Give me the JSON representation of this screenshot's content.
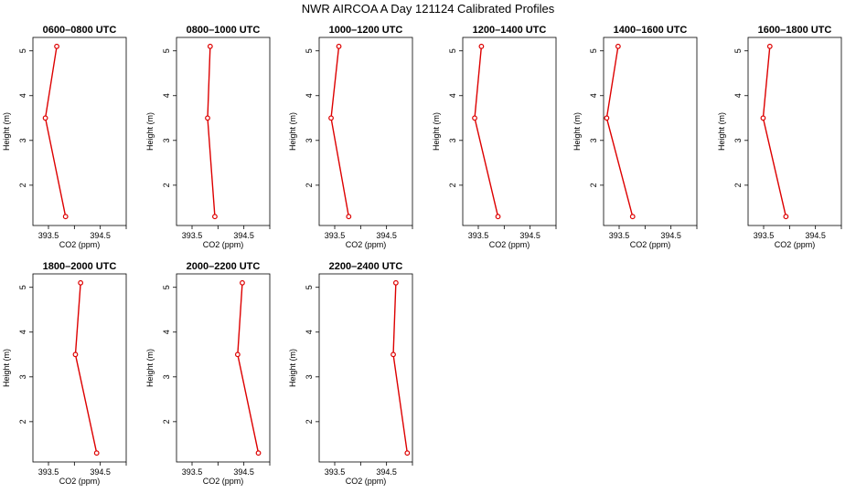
{
  "title": "NWR AIRCOA A  Day 121124  Calibrated Profiles",
  "colors": {
    "series": "#dd0000",
    "axis": "#000000"
  },
  "chart_data": {
    "type": "line",
    "xlabel": "CO2 (ppm)",
    "ylabel": "Height (m)",
    "xlim": [
      393.2,
      395.0
    ],
    "ylim": [
      1.1,
      5.3
    ],
    "xticks": [
      393.5,
      394.0,
      394.5,
      395.0
    ],
    "xtick_labels": [
      "393.5",
      "",
      "394.5",
      ""
    ],
    "yticks": [
      2,
      3,
      4,
      5
    ],
    "ytick_labels": [
      "2",
      "3",
      "4",
      "5"
    ],
    "panels": [
      {
        "title": "0600–0800 UTC",
        "co2": [
          393.83,
          393.44,
          393.66
        ],
        "height": [
          1.3,
          3.5,
          5.1
        ]
      },
      {
        "title": "0800–1000 UTC",
        "co2": [
          393.94,
          393.8,
          393.85
        ],
        "height": [
          1.3,
          3.5,
          5.1
        ]
      },
      {
        "title": "1000–1200 UTC",
        "co2": [
          393.77,
          393.43,
          393.58
        ],
        "height": [
          1.3,
          3.5,
          5.1
        ]
      },
      {
        "title": "1200–1400 UTC",
        "co2": [
          393.88,
          393.43,
          393.56
        ],
        "height": [
          1.3,
          3.5,
          5.1
        ]
      },
      {
        "title": "1400–1600 UTC",
        "co2": [
          393.76,
          393.26,
          393.48
        ],
        "height": [
          1.3,
          3.5,
          5.1
        ]
      },
      {
        "title": "1600–1800 UTC",
        "co2": [
          393.93,
          393.49,
          393.62
        ],
        "height": [
          1.3,
          3.5,
          5.1
        ]
      },
      {
        "title": "1800–2000 UTC",
        "co2": [
          394.43,
          394.02,
          394.12
        ],
        "height": [
          1.3,
          3.5,
          5.1
        ]
      },
      {
        "title": "2000–2200 UTC",
        "co2": [
          394.78,
          394.38,
          394.47
        ],
        "height": [
          1.3,
          3.5,
          5.1
        ]
      },
      {
        "title": "2200–2400 UTC",
        "co2": [
          394.9,
          394.63,
          394.68
        ],
        "height": [
          1.3,
          3.5,
          5.1
        ]
      }
    ]
  }
}
